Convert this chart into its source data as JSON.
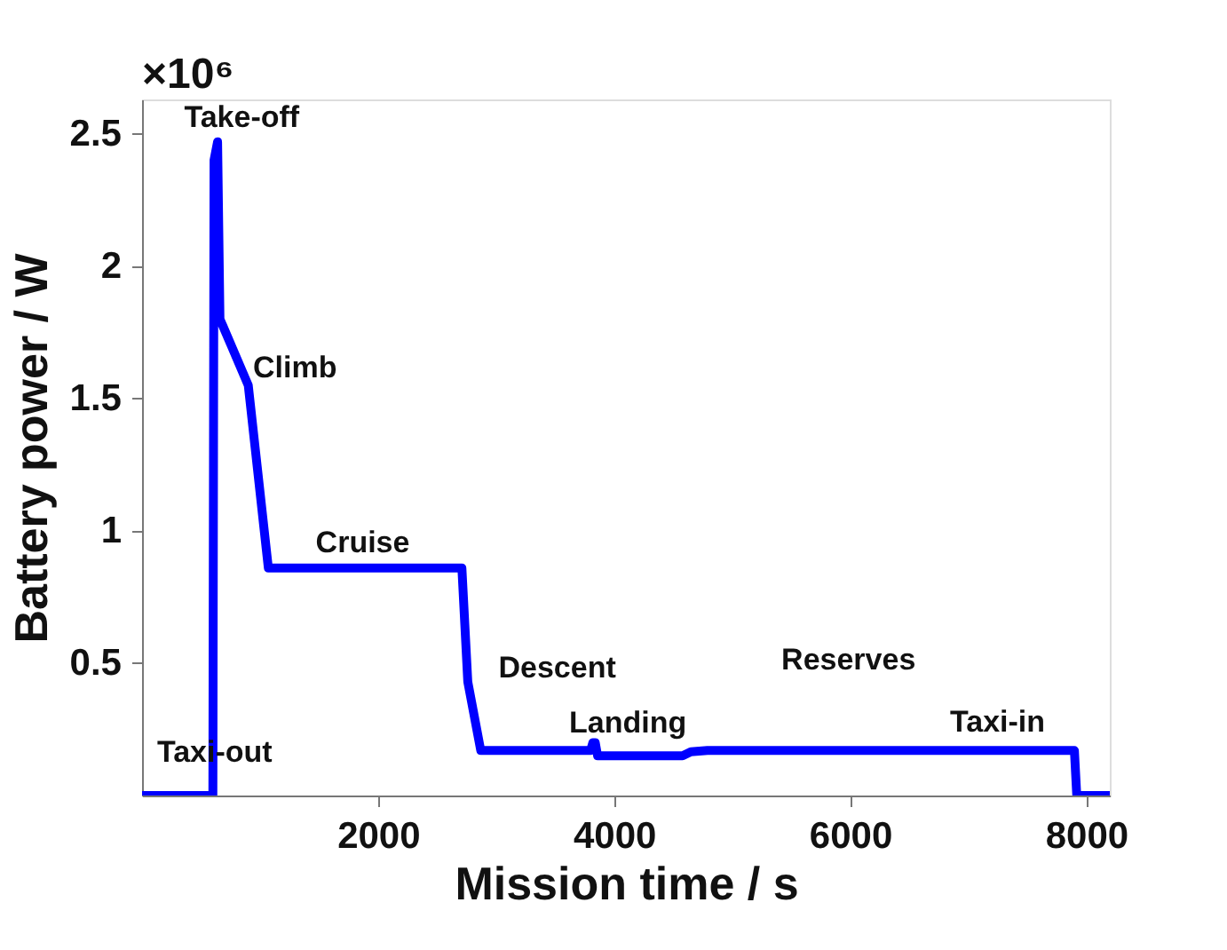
{
  "chart_data": {
    "type": "line",
    "xlabel": "Mission time / s",
    "ylabel": "Battery power / W",
    "x": [
      0,
      600,
      610,
      640,
      660,
      900,
      1070,
      2710,
      2760,
      2870,
      3800,
      3820,
      3840,
      3860,
      4580,
      4650,
      4790,
      7900,
      7920,
      8200
    ],
    "series": [
      {
        "color": "#0000ff",
        "values": [
          0,
          0,
          2.4,
          2.47,
          1.8,
          1.55,
          0.86,
          0.86,
          0.43,
          0.17,
          0.17,
          0.2,
          0.2,
          0.15,
          0.15,
          0.165,
          0.17,
          0.17,
          0,
          0
        ]
      }
    ],
    "xlim": [
      0,
      8200
    ],
    "xticks": [
      2000,
      4000,
      6000,
      8000
    ],
    "ylim": [
      0,
      2.63
    ],
    "yticks": [
      0.5,
      1,
      1.5,
      2,
      2.5
    ],
    "grid": false,
    "marker": "none",
    "line_style": "solid",
    "annotations": [
      "×10⁶",
      "Take-off",
      "Climb",
      "Cruise",
      "Descent",
      "Reserves",
      "Landing",
      "Taxi-in",
      "Taxi-out"
    ]
  }
}
